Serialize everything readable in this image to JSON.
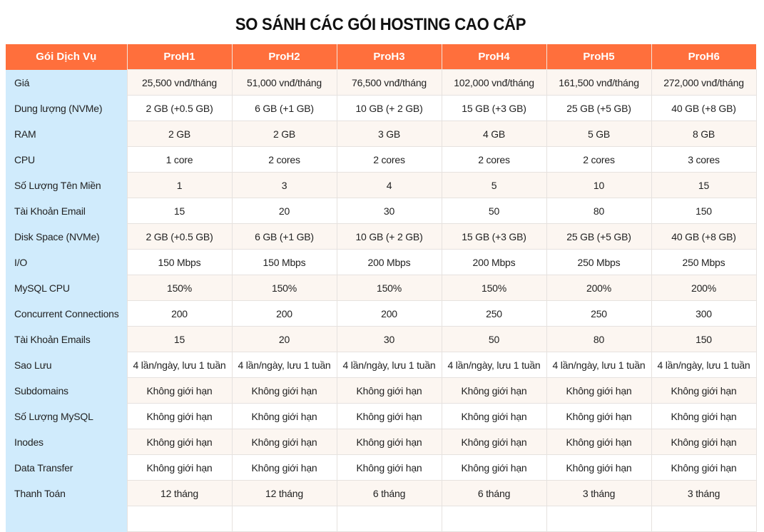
{
  "title": "SO SÁNH CÁC GÓI HOSTING CAO CẤP",
  "colors": {
    "header_bg": "#ff6f3c",
    "header_text": "#ffffff",
    "label_col_bg": "#d0ebfc",
    "row_alt_bg": "#fcf6f1",
    "row_bg": "#ffffff"
  },
  "table": {
    "headers": [
      "Gói Dịch Vụ",
      "ProH1",
      "ProH2",
      "ProH3",
      "ProH4",
      "ProH5",
      "ProH6"
    ],
    "rows": [
      {
        "label": "Giá",
        "values": [
          "25,500 vnđ/tháng",
          "51,000 vnđ/tháng",
          "76,500 vnđ/tháng",
          "102,000 vnđ/tháng",
          "161,500 vnđ/tháng",
          "272,000 vnđ/tháng"
        ]
      },
      {
        "label": "Dung lượng (NVMe)",
        "values": [
          "2 GB (+0.5 GB)",
          "6 GB (+1 GB)",
          "10 GB (+ 2 GB)",
          "15 GB (+3 GB)",
          "25 GB (+5 GB)",
          "40 GB (+8 GB)"
        ]
      },
      {
        "label": "RAM",
        "values": [
          "2 GB",
          "2 GB",
          "3 GB",
          "4 GB",
          "5 GB",
          "8 GB"
        ]
      },
      {
        "label": "CPU",
        "values": [
          "1 core",
          "2 cores",
          "2 cores",
          "2 cores",
          "2 cores",
          "3 cores"
        ]
      },
      {
        "label": "Số Lượng Tên Miền",
        "values": [
          "1",
          "3",
          "4",
          "5",
          "10",
          "15"
        ]
      },
      {
        "label": "Tài Khoản Email",
        "values": [
          "15",
          "20",
          "30",
          "50",
          "80",
          "150"
        ]
      },
      {
        "label": "Disk Space (NVMe)",
        "values": [
          "2 GB (+0.5 GB)",
          "6 GB (+1 GB)",
          "10 GB (+ 2 GB)",
          "15 GB (+3 GB)",
          "25 GB (+5 GB)",
          "40 GB (+8 GB)"
        ]
      },
      {
        "label": "I/O",
        "values": [
          "150 Mbps",
          "150 Mbps",
          "200 Mbps",
          "200 Mbps",
          "250 Mbps",
          "250 Mbps"
        ]
      },
      {
        "label": "MySQL CPU",
        "values": [
          "150%",
          "150%",
          "150%",
          "150%",
          "200%",
          "200%"
        ]
      },
      {
        "label": "Concurrent Connections",
        "values": [
          "200",
          "200",
          "200",
          "250",
          "250",
          "300"
        ]
      },
      {
        "label": "Tài Khoản Emails",
        "values": [
          "15",
          "20",
          "30",
          "50",
          "80",
          "150"
        ]
      },
      {
        "label": "Sao Lưu",
        "values": [
          "4 lần/ngày, lưu 1 tuần",
          "4 lần/ngày, lưu 1 tuần",
          "4 lần/ngày, lưu 1 tuần",
          "4 lần/ngày, lưu 1 tuần",
          "4 lần/ngày, lưu 1 tuần",
          "4 lần/ngày, lưu 1 tuần"
        ]
      },
      {
        "label": "Subdomains",
        "values": [
          "Không giới hạn",
          "Không giới hạn",
          "Không giới hạn",
          "Không giới hạn",
          "Không giới hạn",
          "Không giới hạn"
        ]
      },
      {
        "label": "Số Lượng MySQL",
        "values": [
          "Không giới hạn",
          "Không giới hạn",
          "Không giới hạn",
          "Không giới hạn",
          "Không giới hạn",
          "Không giới hạn"
        ]
      },
      {
        "label": "Inodes",
        "values": [
          "Không giới hạn",
          "Không giới hạn",
          "Không giới hạn",
          "Không giới hạn",
          "Không giới hạn",
          "Không giới hạn"
        ]
      },
      {
        "label": "Data Transfer",
        "values": [
          "Không giới hạn",
          "Không giới hạn",
          "Không giới hạn",
          "Không giới hạn",
          "Không giới hạn",
          "Không giới hạn"
        ]
      },
      {
        "label": "Thanh Toán",
        "values": [
          "12 tháng",
          "12 tháng",
          "6 tháng",
          "6 tháng",
          "3 tháng",
          "3 tháng"
        ]
      },
      {
        "label": "",
        "values": [
          "",
          "",
          "",
          "",
          "",
          ""
        ]
      }
    ]
  }
}
